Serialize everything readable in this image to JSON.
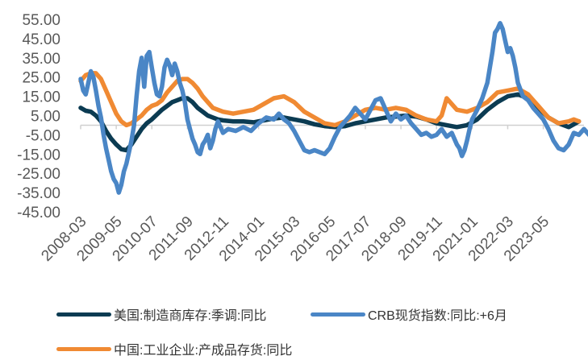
{
  "chart_data": {
    "type": "line",
    "title": "",
    "xlabel": "",
    "ylabel": "",
    "ylim": [
      -45,
      55
    ],
    "y_ticks": [
      "55.00",
      "45.00",
      "35.00",
      "25.00",
      "15.00",
      "5.00",
      "-5.00",
      "-15.00",
      "-25.00",
      "-35.00",
      "-45.00"
    ],
    "x_ticks": [
      "2008-03",
      "2009-05",
      "2010-07",
      "2011-09",
      "2012-11",
      "2014-01",
      "2015-03",
      "2016-05",
      "2017-07",
      "2018-09",
      "2019-11",
      "2021-01",
      "2022-03",
      "2023-05"
    ],
    "x_range": [
      "2008-03",
      "2024-09"
    ],
    "grid": false,
    "legend_position": "bottom",
    "series": [
      {
        "name": "美国:制造商库存:季调:同比",
        "color": "#0b3b52",
        "points": [
          [
            "2008-03",
            9
          ],
          [
            "2008-05",
            7.5
          ],
          [
            "2008-07",
            7
          ],
          [
            "2008-09",
            5
          ],
          [
            "2008-11",
            2
          ],
          [
            "2009-01",
            -3
          ],
          [
            "2009-03",
            -7
          ],
          [
            "2009-05",
            -10
          ],
          [
            "2009-07",
            -12.5
          ],
          [
            "2009-09",
            -13
          ],
          [
            "2009-11",
            -10
          ],
          [
            "2010-01",
            -6
          ],
          [
            "2010-03",
            -2
          ],
          [
            "2010-05",
            1
          ],
          [
            "2010-07",
            3
          ],
          [
            "2010-09",
            5.5
          ],
          [
            "2010-11",
            8
          ],
          [
            "2011-01",
            10
          ],
          [
            "2011-03",
            12
          ],
          [
            "2011-05",
            13
          ],
          [
            "2011-07",
            14
          ],
          [
            "2011-09",
            14
          ],
          [
            "2011-11",
            12
          ],
          [
            "2012-01",
            9
          ],
          [
            "2012-03",
            7
          ],
          [
            "2012-05",
            5
          ],
          [
            "2012-07",
            4
          ],
          [
            "2012-09",
            3
          ],
          [
            "2012-11",
            2.5
          ],
          [
            "2013-03",
            2
          ],
          [
            "2013-07",
            2
          ],
          [
            "2013-11",
            1.5
          ],
          [
            "2014-03",
            2.5
          ],
          [
            "2014-07",
            3.5
          ],
          [
            "2014-11",
            4
          ],
          [
            "2015-03",
            3
          ],
          [
            "2015-07",
            2
          ],
          [
            "2015-11",
            0.5
          ],
          [
            "2016-03",
            -0.5
          ],
          [
            "2016-07",
            -1
          ],
          [
            "2016-11",
            -0.5
          ],
          [
            "2017-03",
            1
          ],
          [
            "2017-07",
            2
          ],
          [
            "2017-11",
            3
          ],
          [
            "2018-03",
            4
          ],
          [
            "2018-07",
            4.5
          ],
          [
            "2018-11",
            5
          ],
          [
            "2019-03",
            4.5
          ],
          [
            "2019-07",
            3
          ],
          [
            "2019-11",
            1
          ],
          [
            "2020-03",
            0
          ],
          [
            "2020-07",
            -1
          ],
          [
            "2020-11",
            0
          ],
          [
            "2021-03",
            3
          ],
          [
            "2021-07",
            8
          ],
          [
            "2021-11",
            12
          ],
          [
            "2022-03",
            15
          ],
          [
            "2022-07",
            16
          ],
          [
            "2022-11",
            14
          ],
          [
            "2023-03",
            9
          ],
          [
            "2023-07",
            4
          ],
          [
            "2023-11",
            1
          ],
          [
            "2024-03",
            -1
          ],
          [
            "2024-05",
            0.5
          ],
          [
            "2024-07",
            2
          ]
        ]
      },
      {
        "name": "CRB现货指数:同比:+6月",
        "color": "#4a86c6",
        "points": [
          [
            "2008-03",
            24
          ],
          [
            "2008-04",
            18
          ],
          [
            "2008-05",
            16
          ],
          [
            "2008-06",
            22
          ],
          [
            "2008-07",
            28
          ],
          [
            "2008-08",
            25
          ],
          [
            "2008-09",
            18
          ],
          [
            "2008-10",
            10
          ],
          [
            "2008-11",
            4
          ],
          [
            "2008-12",
            -5
          ],
          [
            "2009-01",
            -12
          ],
          [
            "2009-02",
            -18
          ],
          [
            "2009-03",
            -24
          ],
          [
            "2009-04",
            -28
          ],
          [
            "2009-05",
            -30
          ],
          [
            "2009-06",
            -35
          ],
          [
            "2009-07",
            -31
          ],
          [
            "2009-08",
            -24
          ],
          [
            "2009-09",
            -20
          ],
          [
            "2009-10",
            -14
          ],
          [
            "2009-11",
            -8
          ],
          [
            "2009-12",
            0
          ],
          [
            "2010-01",
            15
          ],
          [
            "2010-02",
            28
          ],
          [
            "2010-03",
            35
          ],
          [
            "2010-04",
            20
          ],
          [
            "2010-05",
            36
          ],
          [
            "2010-06",
            38
          ],
          [
            "2010-07",
            30
          ],
          [
            "2010-08",
            22
          ],
          [
            "2010-09",
            16
          ],
          [
            "2010-10",
            15
          ],
          [
            "2010-11",
            20
          ],
          [
            "2010-12",
            30
          ],
          [
            "2011-01",
            34
          ],
          [
            "2011-02",
            31
          ],
          [
            "2011-03",
            26
          ],
          [
            "2011-04",
            32
          ],
          [
            "2011-05",
            28
          ],
          [
            "2011-06",
            22
          ],
          [
            "2011-07",
            18
          ],
          [
            "2011-08",
            12
          ],
          [
            "2011-09",
            3
          ],
          [
            "2011-10",
            -2
          ],
          [
            "2011-11",
            -7
          ],
          [
            "2011-12",
            -10
          ],
          [
            "2012-01",
            -14
          ],
          [
            "2012-02",
            -15
          ],
          [
            "2012-03",
            -10
          ],
          [
            "2012-04",
            -8
          ],
          [
            "2012-05",
            -5
          ],
          [
            "2012-06",
            -12
          ],
          [
            "2012-07",
            -8
          ],
          [
            "2012-08",
            -2
          ],
          [
            "2012-09",
            2
          ],
          [
            "2012-10",
            -1
          ],
          [
            "2012-11",
            -4
          ],
          [
            "2013-01",
            -2
          ],
          [
            "2013-04",
            -3
          ],
          [
            "2013-07",
            -1
          ],
          [
            "2013-10",
            -3
          ],
          [
            "2014-01",
            1
          ],
          [
            "2014-04",
            4
          ],
          [
            "2014-07",
            3
          ],
          [
            "2014-09",
            6
          ],
          [
            "2014-11",
            3
          ],
          [
            "2015-01",
            1
          ],
          [
            "2015-03",
            -3
          ],
          [
            "2015-05",
            -8
          ],
          [
            "2015-07",
            -13
          ],
          [
            "2015-09",
            -14
          ],
          [
            "2015-11",
            -13
          ],
          [
            "2016-01",
            -14
          ],
          [
            "2016-03",
            -15
          ],
          [
            "2016-05",
            -12
          ],
          [
            "2016-07",
            -6
          ],
          [
            "2016-09",
            -1
          ],
          [
            "2016-11",
            2
          ],
          [
            "2017-01",
            5
          ],
          [
            "2017-03",
            9
          ],
          [
            "2017-05",
            6
          ],
          [
            "2017-07",
            3
          ],
          [
            "2017-09",
            8
          ],
          [
            "2017-11",
            13
          ],
          [
            "2018-01",
            14
          ],
          [
            "2018-03",
            8
          ],
          [
            "2018-05",
            2
          ],
          [
            "2018-07",
            6
          ],
          [
            "2018-09",
            3
          ],
          [
            "2018-11",
            5
          ],
          [
            "2019-01",
            1
          ],
          [
            "2019-03",
            -2
          ],
          [
            "2019-05",
            -5
          ],
          [
            "2019-07",
            -4
          ],
          [
            "2019-09",
            -6
          ],
          [
            "2019-11",
            -5
          ],
          [
            "2020-01",
            -2
          ],
          [
            "2020-03",
            -6
          ],
          [
            "2020-05",
            -4
          ],
          [
            "2020-07",
            -10
          ],
          [
            "2020-08",
            -12
          ],
          [
            "2020-09",
            -16
          ],
          [
            "2020-10",
            -13
          ],
          [
            "2020-11",
            -8
          ],
          [
            "2020-12",
            -2
          ],
          [
            "2021-01",
            3
          ],
          [
            "2021-03",
            8
          ],
          [
            "2021-05",
            14
          ],
          [
            "2021-07",
            22
          ],
          [
            "2021-09",
            38
          ],
          [
            "2021-10",
            48
          ],
          [
            "2021-11",
            50
          ],
          [
            "2021-12",
            53
          ],
          [
            "2022-01",
            50
          ],
          [
            "2022-02",
            44
          ],
          [
            "2022-03",
            38
          ],
          [
            "2022-04",
            40
          ],
          [
            "2022-05",
            36
          ],
          [
            "2022-06",
            30
          ],
          [
            "2022-07",
            22
          ],
          [
            "2022-09",
            15
          ],
          [
            "2022-11",
            13
          ],
          [
            "2023-01",
            9
          ],
          [
            "2023-03",
            6
          ],
          [
            "2023-05",
            3
          ],
          [
            "2023-07",
            -2
          ],
          [
            "2023-09",
            -8
          ],
          [
            "2023-11",
            -12
          ],
          [
            "2024-01",
            -13
          ],
          [
            "2024-03",
            -10
          ],
          [
            "2024-05",
            -4
          ],
          [
            "2024-07",
            -5
          ],
          [
            "2024-09",
            -2
          ],
          [
            "2024-11",
            -5
          ],
          [
            "2025-01",
            -7
          ]
        ]
      },
      {
        "name": "中国:工业企业:产成品存货:同比",
        "color": "#f08a33",
        "points": [
          [
            "2008-03",
            23
          ],
          [
            "2008-05",
            26
          ],
          [
            "2008-07",
            27
          ],
          [
            "2008-09",
            27
          ],
          [
            "2008-11",
            24
          ],
          [
            "2009-01",
            18
          ],
          [
            "2009-03",
            12
          ],
          [
            "2009-05",
            6
          ],
          [
            "2009-07",
            2
          ],
          [
            "2009-09",
            0
          ],
          [
            "2009-11",
            1
          ],
          [
            "2010-01",
            3
          ],
          [
            "2010-03",
            5
          ],
          [
            "2010-05",
            8
          ],
          [
            "2010-07",
            10
          ],
          [
            "2010-09",
            11
          ],
          [
            "2010-11",
            13
          ],
          [
            "2011-01",
            17
          ],
          [
            "2011-03",
            20
          ],
          [
            "2011-05",
            23
          ],
          [
            "2011-07",
            24
          ],
          [
            "2011-09",
            24
          ],
          [
            "2011-11",
            22
          ],
          [
            "2012-01",
            19
          ],
          [
            "2012-03",
            15
          ],
          [
            "2012-05",
            12
          ],
          [
            "2012-07",
            9
          ],
          [
            "2012-09",
            8
          ],
          [
            "2012-11",
            7
          ],
          [
            "2013-03",
            6
          ],
          [
            "2013-07",
            7
          ],
          [
            "2013-11",
            8
          ],
          [
            "2014-03",
            11
          ],
          [
            "2014-07",
            14
          ],
          [
            "2014-11",
            15
          ],
          [
            "2015-03",
            12
          ],
          [
            "2015-07",
            7
          ],
          [
            "2015-11",
            4
          ],
          [
            "2016-03",
            1
          ],
          [
            "2016-07",
            0
          ],
          [
            "2016-11",
            2
          ],
          [
            "2017-03",
            5
          ],
          [
            "2017-07",
            8
          ],
          [
            "2017-11",
            9
          ],
          [
            "2018-03",
            8
          ],
          [
            "2018-07",
            9
          ],
          [
            "2018-11",
            8
          ],
          [
            "2019-03",
            5
          ],
          [
            "2019-07",
            3
          ],
          [
            "2019-11",
            2
          ],
          [
            "2020-01",
            5
          ],
          [
            "2020-03",
            14
          ],
          [
            "2020-05",
            11
          ],
          [
            "2020-07",
            8
          ],
          [
            "2020-11",
            7
          ],
          [
            "2021-03",
            9
          ],
          [
            "2021-07",
            12
          ],
          [
            "2021-11",
            17
          ],
          [
            "2022-03",
            18
          ],
          [
            "2022-07",
            19
          ],
          [
            "2022-11",
            16
          ],
          [
            "2023-03",
            10
          ],
          [
            "2023-07",
            4
          ],
          [
            "2023-11",
            1
          ],
          [
            "2024-03",
            2
          ],
          [
            "2024-05",
            3
          ],
          [
            "2024-07",
            2
          ]
        ]
      }
    ]
  }
}
